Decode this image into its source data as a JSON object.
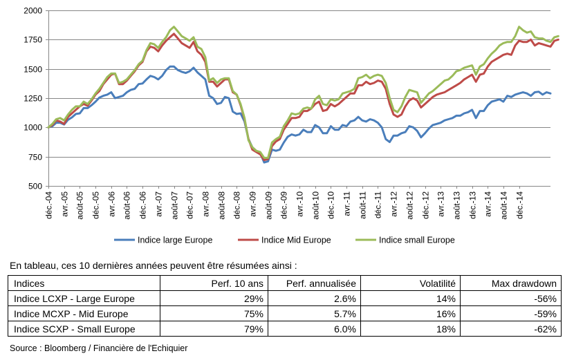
{
  "chart_data": {
    "type": "line",
    "ylim": [
      500,
      2000
    ],
    "yticks": [
      500,
      750,
      1000,
      1250,
      1500,
      1750,
      2000
    ],
    "grid": true,
    "legend_position": "bottom",
    "x_tick_labels": [
      "déc.-04",
      "avr.-05",
      "août-05",
      "déc.-05",
      "avr.-06",
      "août-06",
      "déc.-06",
      "avr.-07",
      "août-07",
      "déc.-07",
      "avr.-08",
      "août-08",
      "déc.-08",
      "avr.-09",
      "août-09",
      "déc.-09",
      "avr.-10",
      "août-10",
      "déc.-10",
      "avr.-11",
      "août-11",
      "déc.-11",
      "avr.-12",
      "août-12",
      "déc.-12",
      "avr.-13",
      "août-13",
      "déc.-13",
      "avr.-14",
      "août-14",
      "déc.-14"
    ],
    "x_start": "déc.-04",
    "x_step": "month",
    "series": [
      {
        "name": "Indice large Europe",
        "color": "#4a7ebb",
        "values": [
          1000,
          1010,
          1040,
          1040,
          1025,
          1065,
          1085,
          1115,
          1120,
          1165,
          1165,
          1190,
          1220,
          1255,
          1270,
          1280,
          1300,
          1250,
          1260,
          1270,
          1300,
          1320,
          1330,
          1370,
          1375,
          1410,
          1440,
          1430,
          1410,
          1440,
          1490,
          1520,
          1520,
          1490,
          1475,
          1465,
          1480,
          1510,
          1470,
          1440,
          1410,
          1270,
          1250,
          1200,
          1210,
          1260,
          1250,
          1135,
          1115,
          1120,
          1050,
          900,
          830,
          800,
          780,
          700,
          710,
          810,
          800,
          810,
          870,
          920,
          940,
          930,
          940,
          980,
          960,
          960,
          1020,
          1000,
          950,
          950,
          1010,
          980,
          980,
          1020,
          1010,
          1050,
          1060,
          1090,
          1060,
          1050,
          1070,
          1060,
          1040,
          1000,
          900,
          875,
          930,
          930,
          950,
          960,
          1010,
          1000,
          970,
          915,
          950,
          990,
          1020,
          1030,
          1040,
          1060,
          1070,
          1080,
          1100,
          1100,
          1120,
          1130,
          1150,
          1080,
          1140,
          1140,
          1190,
          1220,
          1230,
          1240,
          1220,
          1270,
          1260,
          1280,
          1290,
          1300,
          1290,
          1270,
          1300,
          1305,
          1280,
          1300,
          1290
        ]
      },
      {
        "name": "Indice Mid Europe",
        "color": "#be4b48",
        "values": [
          1000,
          1020,
          1060,
          1050,
          1030,
          1090,
          1120,
          1150,
          1180,
          1200,
          1185,
          1230,
          1280,
          1310,
          1370,
          1410,
          1450,
          1460,
          1370,
          1370,
          1400,
          1440,
          1480,
          1530,
          1560,
          1650,
          1690,
          1680,
          1650,
          1700,
          1740,
          1770,
          1800,
          1760,
          1720,
          1700,
          1680,
          1730,
          1650,
          1620,
          1560,
          1390,
          1390,
          1350,
          1380,
          1410,
          1410,
          1300,
          1280,
          1190,
          1070,
          900,
          810,
          790,
          770,
          720,
          730,
          840,
          880,
          900,
          980,
          1030,
          1080,
          1080,
          1090,
          1140,
          1140,
          1160,
          1200,
          1220,
          1140,
          1150,
          1200,
          1180,
          1200,
          1230,
          1260,
          1290,
          1290,
          1360,
          1360,
          1390,
          1370,
          1380,
          1400,
          1390,
          1330,
          1200,
          1110,
          1090,
          1110,
          1180,
          1230,
          1250,
          1230,
          1170,
          1200,
          1230,
          1260,
          1280,
          1290,
          1300,
          1320,
          1340,
          1360,
          1380,
          1410,
          1430,
          1450,
          1390,
          1450,
          1460,
          1520,
          1560,
          1580,
          1600,
          1620,
          1630,
          1620,
          1700,
          1740,
          1730,
          1730,
          1750,
          1700,
          1720,
          1710,
          1700,
          1690,
          1740,
          1750
        ]
      },
      {
        "name": "Indice small Europe",
        "color": "#9bbb59",
        "values": [
          1000,
          1030,
          1070,
          1080,
          1060,
          1110,
          1150,
          1180,
          1180,
          1220,
          1200,
          1240,
          1290,
          1330,
          1380,
          1430,
          1460,
          1460,
          1380,
          1390,
          1410,
          1450,
          1490,
          1540,
          1570,
          1660,
          1720,
          1710,
          1680,
          1730,
          1770,
          1830,
          1860,
          1820,
          1780,
          1760,
          1740,
          1770,
          1690,
          1670,
          1600,
          1400,
          1420,
          1380,
          1410,
          1420,
          1420,
          1310,
          1280,
          1200,
          1080,
          890,
          830,
          800,
          790,
          740,
          740,
          870,
          900,
          920,
          1010,
          1060,
          1120,
          1110,
          1120,
          1160,
          1170,
          1160,
          1240,
          1270,
          1200,
          1190,
          1240,
          1230,
          1240,
          1290,
          1300,
          1310,
          1330,
          1420,
          1430,
          1450,
          1420,
          1440,
          1450,
          1440,
          1380,
          1250,
          1150,
          1130,
          1180,
          1260,
          1320,
          1310,
          1300,
          1210,
          1250,
          1290,
          1310,
          1340,
          1370,
          1400,
          1410,
          1440,
          1480,
          1490,
          1510,
          1520,
          1530,
          1450,
          1520,
          1540,
          1590,
          1630,
          1660,
          1700,
          1720,
          1730,
          1730,
          1780,
          1860,
          1830,
          1810,
          1820,
          1770,
          1760,
          1760,
          1740,
          1730,
          1770,
          1780
        ]
      }
    ]
  },
  "intro_text": "En tableau, ces 10 dernières années peuvent être résumées ainsi :",
  "table": {
    "headers": [
      "Indices",
      "Perf. 10 ans",
      "Perf. annualisée",
      "Volatilité",
      "Max drawdown"
    ],
    "rows": [
      [
        "Indice LCXP - Large Europe",
        "29%",
        "2.6%",
        "14%",
        "-56%"
      ],
      [
        "Indice MCXP - Mid Europe",
        "75%",
        "5.7%",
        "16%",
        "-59%"
      ],
      [
        "Indice SCXP - Small Europe",
        "79%",
        "6.0%",
        "18%",
        "-62%"
      ]
    ]
  },
  "source_text": "Source : Bloomberg / Financière de l'Echiquier"
}
